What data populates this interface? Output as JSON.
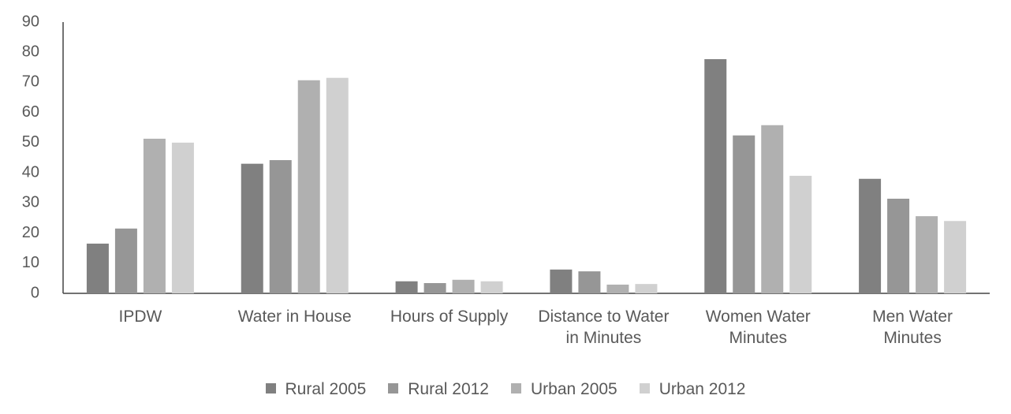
{
  "chart_data": {
    "type": "bar",
    "categories": [
      "IPDW",
      "Water in House",
      "Hours of Supply",
      "Distance to Water in Minutes",
      "Women Water Minutes",
      "Men Water Minutes"
    ],
    "series": [
      {
        "name": "Rural 2005",
        "color": "#808080",
        "values": [
          16.5,
          43,
          4,
          7.9,
          77.7,
          38
        ]
      },
      {
        "name": "Rural 2012",
        "color": "#969696",
        "values": [
          21.5,
          44.2,
          3.4,
          7.3,
          52.4,
          31.4
        ]
      },
      {
        "name": "Urban 2005",
        "color": "#b0b0b0",
        "values": [
          51.3,
          70.7,
          4.5,
          2.9,
          55.8,
          25.6
        ]
      },
      {
        "name": "Urban 2012",
        "color": "#d0d0d0",
        "values": [
          50,
          71.5,
          4,
          3.1,
          39,
          24
        ]
      }
    ],
    "ylim": [
      0,
      90
    ],
    "yticks": [
      0,
      10,
      20,
      30,
      40,
      50,
      60,
      70,
      80,
      90
    ],
    "grid": false,
    "legend": "bottom"
  }
}
